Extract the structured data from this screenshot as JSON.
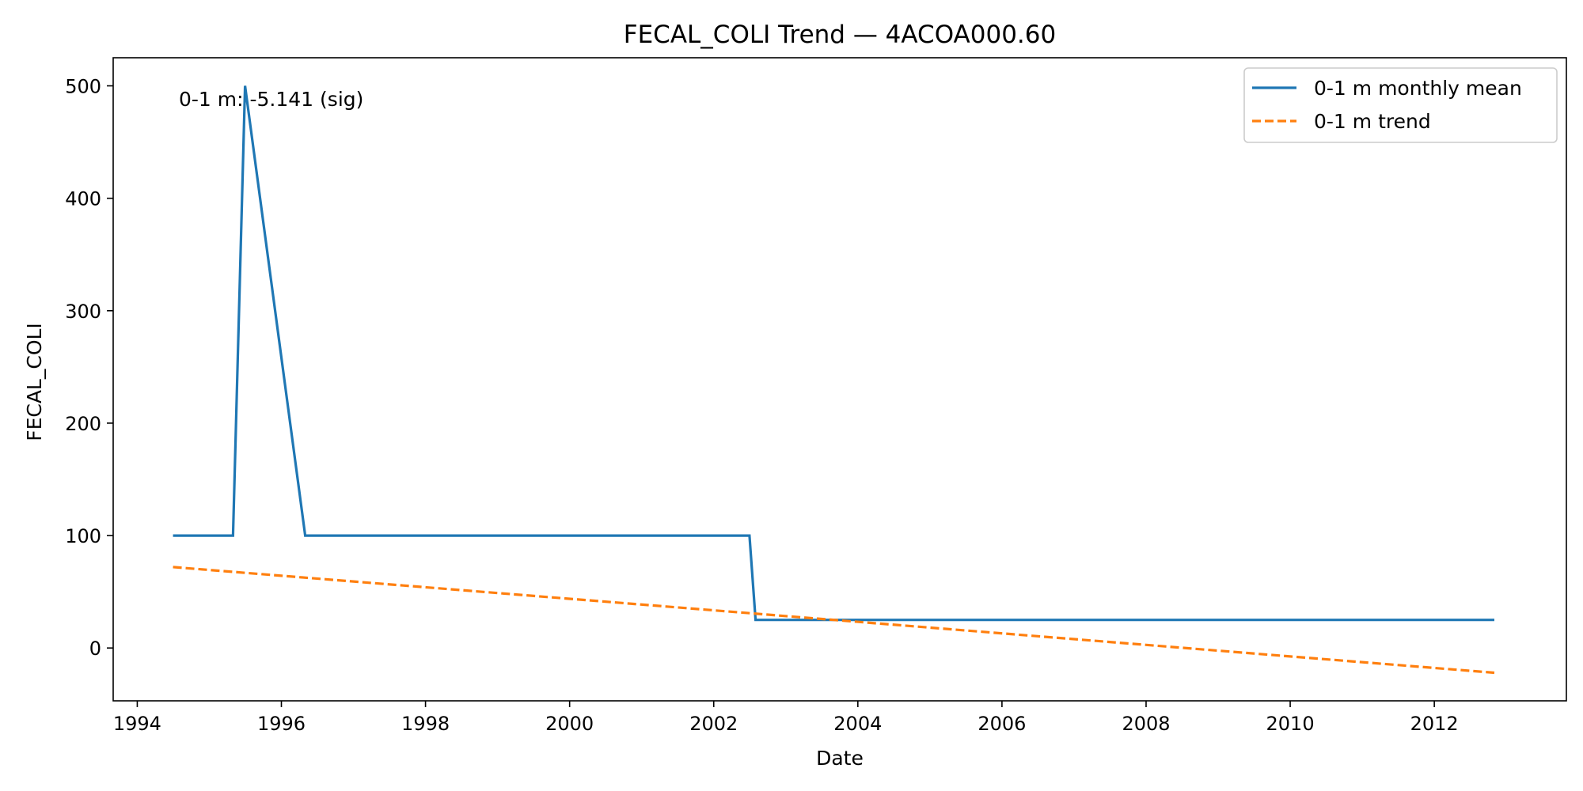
{
  "chart_data": {
    "type": "line",
    "title": "FECAL_COLI Trend — 4ACOA000.60",
    "xlabel": "Date",
    "ylabel": "FECAL_COLI",
    "xlim": [
      "1993-09-01",
      "2013-11-01"
    ],
    "ylim": [
      -47,
      525
    ],
    "x_ticks": [
      "1994",
      "1996",
      "1998",
      "2000",
      "2002",
      "2004",
      "2006",
      "2008",
      "2010",
      "2012"
    ],
    "y_ticks": [
      0,
      100,
      200,
      300,
      400,
      500
    ],
    "grid": false,
    "legend_position": "top-right",
    "annotation": "0-1 m: -5.141 (sig)",
    "colors": {
      "mean": "#1f77b4",
      "trend": "#ff7f0e"
    },
    "series": [
      {
        "name": "0-1 m monthly mean",
        "style": "solid",
        "points": [
          {
            "x": "1994-07-01",
            "y": 100
          },
          {
            "x": "1995-05-01",
            "y": 100
          },
          {
            "x": "1995-07-01",
            "y": 500
          },
          {
            "x": "1996-05-01",
            "y": 100
          },
          {
            "x": "2002-07-01",
            "y": 100
          },
          {
            "x": "2002-08-01",
            "y": 25
          },
          {
            "x": "2012-11-01",
            "y": 25
          }
        ]
      },
      {
        "name": "0-1 m trend",
        "style": "dashed",
        "points": [
          {
            "x": "1994-07-01",
            "y": 72
          },
          {
            "x": "2012-11-01",
            "y": -22
          }
        ]
      }
    ]
  }
}
